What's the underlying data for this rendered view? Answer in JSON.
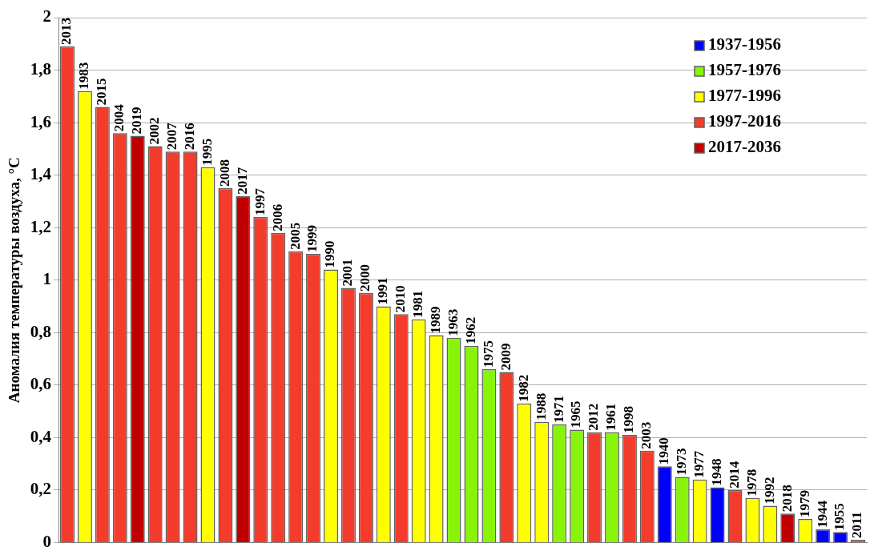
{
  "chart_data": {
    "type": "bar",
    "ylabel": "Аномалия температуры воздуха, °C",
    "categories": [
      "2013",
      "1983",
      "2015",
      "2004",
      "2019",
      "2002",
      "2007",
      "2016",
      "1995",
      "2008",
      "2017",
      "1997",
      "2006",
      "2005",
      "1999",
      "1990",
      "2001",
      "2000",
      "1991",
      "2010",
      "1981",
      "1989",
      "1963",
      "1962",
      "1975",
      "2009",
      "1982",
      "1988",
      "1971",
      "1965",
      "2012",
      "1961",
      "1998",
      "2003",
      "1940",
      "1973",
      "1977",
      "1948",
      "2014",
      "1978",
      "1992",
      "2018",
      "1979",
      "1944",
      "1955",
      "2011"
    ],
    "series": [
      {
        "name": "1937-1956",
        "color": "#0000ff",
        "values": [
          null,
          null,
          null,
          null,
          null,
          null,
          null,
          null,
          null,
          null,
          null,
          null,
          null,
          null,
          null,
          null,
          null,
          null,
          null,
          null,
          null,
          null,
          null,
          null,
          null,
          null,
          null,
          null,
          null,
          null,
          null,
          null,
          null,
          null,
          0.29,
          null,
          null,
          0.21,
          null,
          null,
          null,
          null,
          null,
          0.05,
          0.04,
          null
        ]
      },
      {
        "name": "1957-1976",
        "color": "#88f40a",
        "values": [
          null,
          null,
          null,
          null,
          null,
          null,
          null,
          null,
          null,
          null,
          null,
          null,
          null,
          null,
          null,
          null,
          null,
          null,
          null,
          null,
          null,
          null,
          0.78,
          0.75,
          0.66,
          null,
          null,
          null,
          0.45,
          0.43,
          null,
          0.42,
          null,
          null,
          null,
          0.25,
          null,
          null,
          null,
          null,
          null,
          null,
          null,
          null,
          null,
          null
        ]
      },
      {
        "name": "1977-1996",
        "color": "#ffff00",
        "values": [
          null,
          1.72,
          null,
          null,
          null,
          null,
          null,
          null,
          1.43,
          null,
          null,
          null,
          null,
          null,
          null,
          1.04,
          null,
          null,
          0.9,
          null,
          0.85,
          0.79,
          null,
          null,
          null,
          null,
          0.53,
          0.46,
          null,
          null,
          null,
          null,
          null,
          null,
          null,
          null,
          0.24,
          null,
          null,
          0.17,
          0.14,
          null,
          0.09,
          null,
          null,
          null
        ]
      },
      {
        "name": "1997-2016",
        "color": "#f43c2c",
        "values": [
          1.89,
          null,
          1.66,
          1.56,
          null,
          1.51,
          1.49,
          1.49,
          null,
          1.35,
          null,
          1.24,
          1.18,
          1.11,
          1.1,
          null,
          0.97,
          0.95,
          null,
          0.87,
          null,
          null,
          null,
          null,
          null,
          0.65,
          null,
          null,
          null,
          null,
          0.42,
          null,
          0.41,
          0.35,
          null,
          null,
          null,
          null,
          0.2,
          null,
          null,
          null,
          null,
          null,
          null,
          0.01
        ]
      },
      {
        "name": "2017-2036",
        "color": "#c00000",
        "values": [
          null,
          null,
          null,
          null,
          1.55,
          null,
          null,
          null,
          null,
          null,
          1.32,
          null,
          null,
          null,
          null,
          null,
          null,
          null,
          null,
          null,
          null,
          null,
          null,
          null,
          null,
          null,
          null,
          null,
          null,
          null,
          null,
          null,
          null,
          null,
          null,
          null,
          null,
          null,
          null,
          null,
          null,
          0.11,
          null,
          null,
          null,
          null
        ]
      }
    ],
    "ylim": [
      0,
      2
    ],
    "yticks": [
      0,
      {
        "value": 0.2,
        "label": "0,2"
      },
      {
        "value": 0.4,
        "label": "0,4"
      },
      {
        "value": 0.6,
        "label": "0,6"
      },
      {
        "value": 0.8,
        "label": "0,8"
      },
      1,
      {
        "value": 1.2,
        "label": "1,2"
      },
      {
        "value": 1.4,
        "label": "1,4"
      },
      {
        "value": 1.6,
        "label": "1,6"
      },
      {
        "value": 1.8,
        "label": "1,8"
      },
      2
    ],
    "grid": "y",
    "legend": "top right"
  }
}
